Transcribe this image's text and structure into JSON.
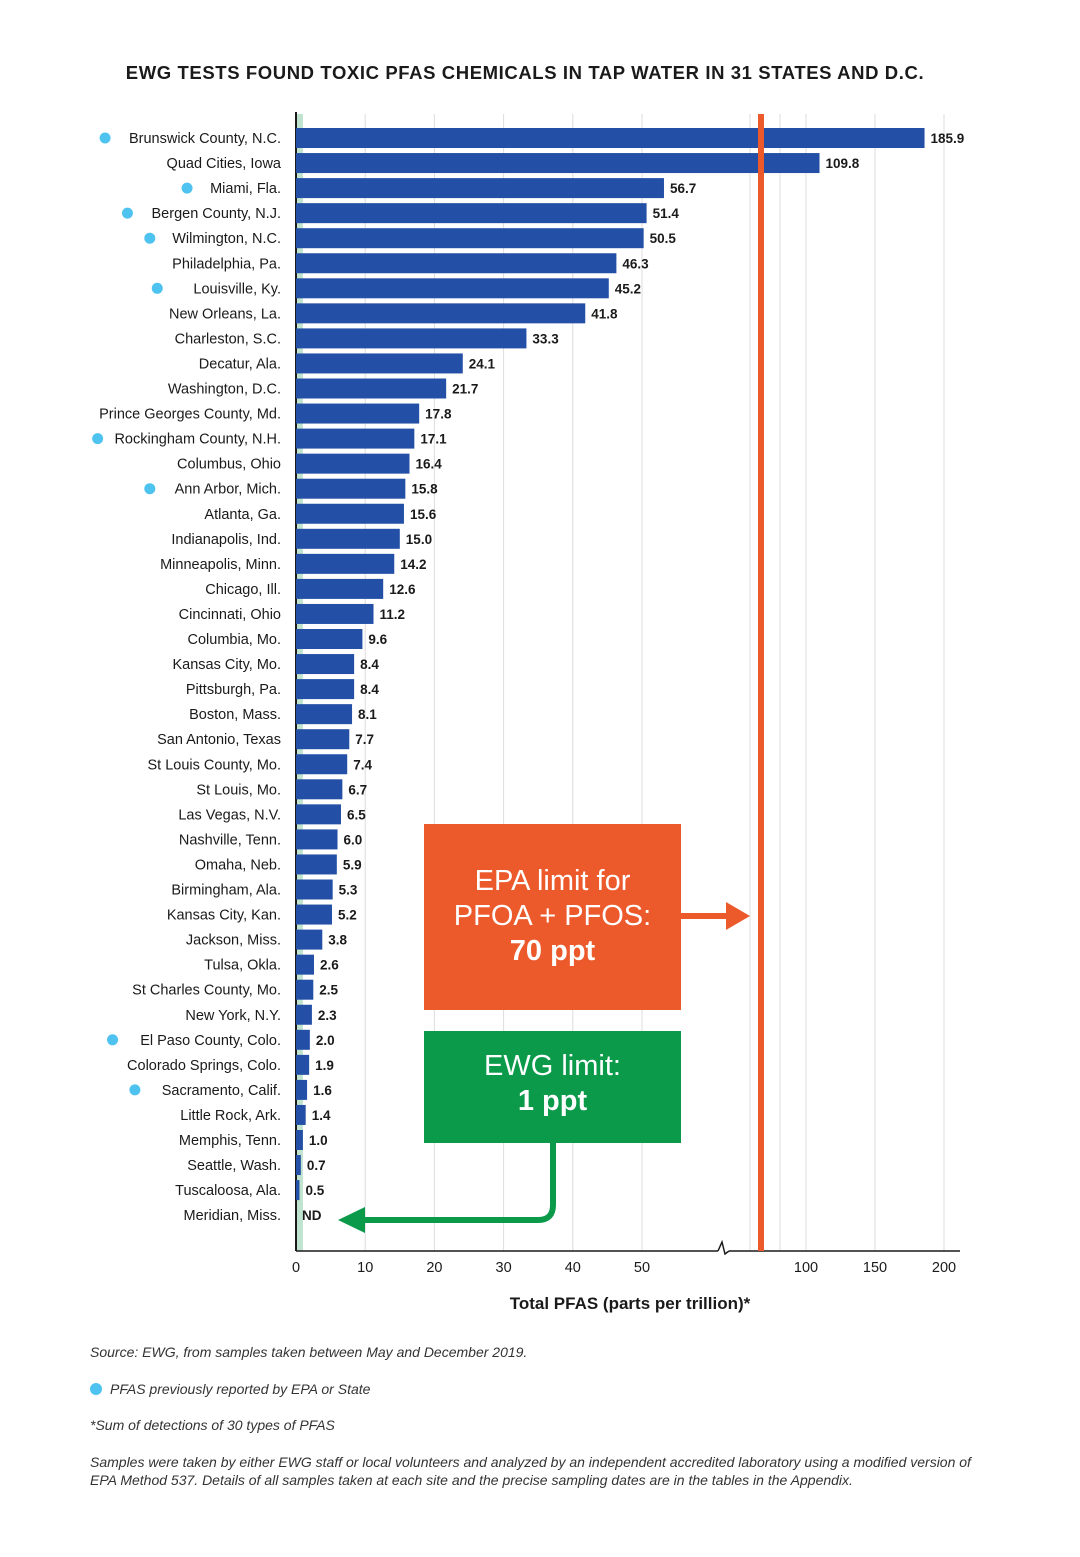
{
  "chart_data": {
    "type": "bar",
    "orientation": "horizontal",
    "title": "EWG TESTS FOUND TOXIC PFAS CHEMICALS IN TAP WATER IN 31 STATES AND D.C.",
    "xlabel": "Total PFAS (parts per trillion)*",
    "ylabel": "",
    "x_axis": "broken scale: 0–50 linear, then break, then 100–200",
    "x_ticks": [
      "0",
      "10",
      "20",
      "30",
      "40",
      "50",
      "100",
      "150",
      "200"
    ],
    "categories": [
      "Brunswick County, N.C.",
      "Quad Cities, Iowa",
      "Miami, Fla.",
      "Bergen County, N.J.",
      "Wilmington, N.C.",
      "Philadelphia, Pa.",
      "Louisville, Ky.",
      "New Orleans, La.",
      "Charleston, S.C.",
      "Decatur, Ala.",
      "Washington, D.C.",
      "Prince Georges County, Md.",
      "Rockingham County, N.H.",
      "Columbus, Ohio",
      "Ann Arbor, Mich.",
      "Atlanta, Ga.",
      "Indianapolis, Ind.",
      "Minneapolis, Minn.",
      "Chicago, Ill.",
      "Cincinnati, Ohio",
      "Columbia, Mo.",
      "Kansas City, Mo.",
      "Pittsburgh, Pa.",
      "Boston, Mass.",
      "San Antonio, Texas",
      "St Louis County, Mo.",
      "St Louis, Mo.",
      "Las Vegas, N.V.",
      "Nashville, Tenn.",
      "Omaha, Neb.",
      "Birmingham, Ala.",
      "Kansas City, Kan.",
      "Jackson, Miss.",
      "Tulsa, Okla.",
      "St Charles County, Mo.",
      "New York, N.Y.",
      "El Paso County, Colo.",
      "Colorado Springs, Colo.",
      "Sacramento, Calif.",
      "Little Rock, Ark.",
      "Memphis, Tenn.",
      "Seattle, Wash.",
      "Tuscaloosa, Ala.",
      "Meridian, Miss."
    ],
    "values": [
      185.9,
      109.8,
      56.7,
      51.4,
      50.5,
      46.3,
      45.2,
      41.8,
      33.3,
      24.1,
      21.7,
      17.8,
      17.1,
      16.4,
      15.8,
      15.6,
      15.0,
      14.2,
      12.6,
      11.2,
      9.6,
      8.4,
      8.4,
      8.1,
      7.7,
      7.4,
      6.7,
      6.5,
      6.0,
      5.9,
      5.3,
      5.2,
      3.8,
      2.6,
      2.5,
      2.3,
      2.0,
      1.9,
      1.6,
      1.4,
      1.0,
      0.7,
      0.5,
      0
    ],
    "value_labels": [
      "185.9",
      "109.8",
      "56.7",
      "51.4",
      "50.5",
      "46.3",
      "45.2",
      "41.8",
      "33.3",
      "24.1",
      "21.7",
      "17.8",
      "17.1",
      "16.4",
      "15.8",
      "15.6",
      "15.0",
      "14.2",
      "12.6",
      "11.2",
      "9.6",
      "8.4",
      "8.4",
      "8.1",
      "7.7",
      "7.4",
      "6.7",
      "6.5",
      "6.0",
      "5.9",
      "5.3",
      "5.2",
      "3.8",
      "2.6",
      "2.5",
      "2.3",
      "2.0",
      "1.9",
      "1.6",
      "1.4",
      "1.0",
      "0.7",
      "0.5",
      "ND"
    ],
    "previously_reported": [
      true,
      false,
      true,
      true,
      true,
      false,
      true,
      false,
      false,
      false,
      false,
      false,
      true,
      false,
      true,
      false,
      false,
      false,
      false,
      false,
      false,
      false,
      false,
      false,
      false,
      false,
      false,
      false,
      false,
      false,
      false,
      false,
      false,
      false,
      false,
      false,
      true,
      false,
      true,
      false,
      false,
      false,
      false,
      false
    ],
    "reference_lines": [
      {
        "name": "EPA limit",
        "value": 70,
        "color": "#ec5a2c"
      },
      {
        "name": "EWG limit",
        "value": 1,
        "color": "#0b9a4a"
      }
    ],
    "bar_color": "#2350a6",
    "marker_color": "#4fc3f0"
  },
  "callouts": {
    "epa": {
      "line1": "EPA limit for",
      "line2": "PFOA + PFOS:",
      "line3": "70 ppt",
      "color": "#ec5a2c"
    },
    "ewg": {
      "line1": "EWG limit:",
      "line2": "1 ppt",
      "color": "#0b9a4a"
    }
  },
  "footnotes": {
    "source": "Source: EWG, from samples taken between May and December 2019.",
    "legend": "PFAS previously reported by EPA or State",
    "asterisk": "*Sum of detections of 30 types of PFAS",
    "method": "Samples were taken by either EWG staff or local volunteers and analyzed by an independent accredited laboratory using a modified version of EPA Method 537. Details of all samples taken at each site and the precise sampling dates are in the tables in the Appendix."
  }
}
